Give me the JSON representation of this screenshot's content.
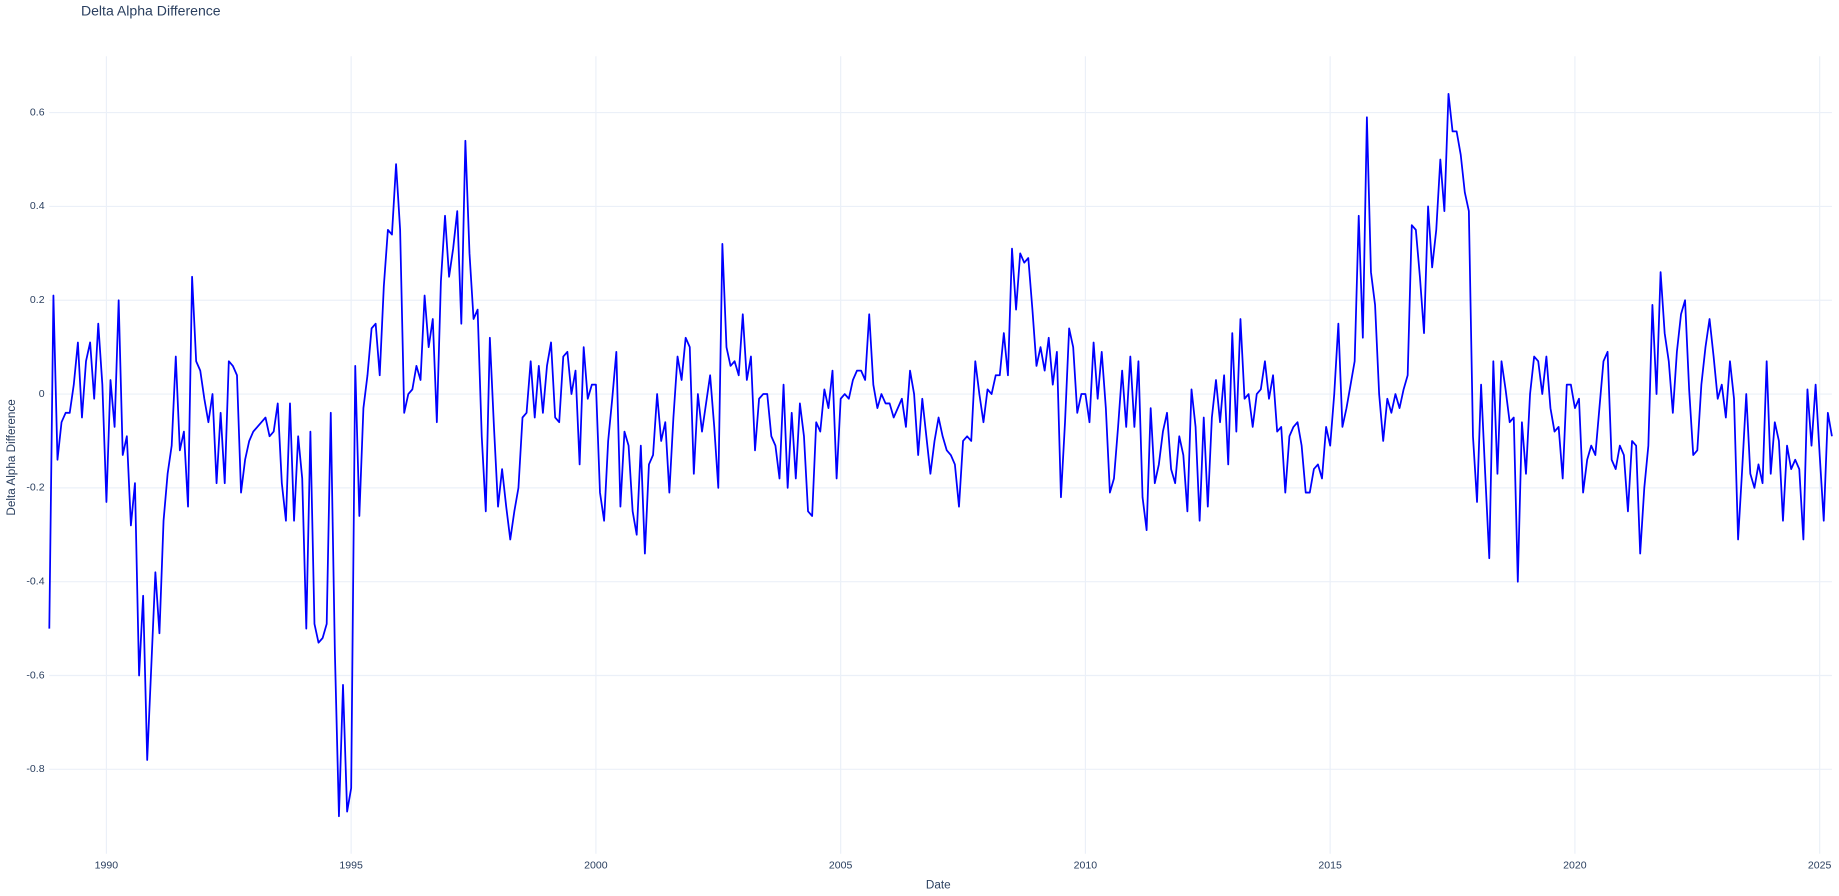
{
  "chart_data": {
    "type": "line",
    "title": "Delta Alpha Difference",
    "x_label": "Date",
    "y_label": "Delta Alpha Difference",
    "color": "#0000ff",
    "grid": true,
    "xlim": [
      1988.833,
      2025.25
    ],
    "xticks": [
      1990,
      1995,
      2000,
      2005,
      2010,
      2015,
      2020,
      2025
    ],
    "ylim": [
      -0.98,
      0.72
    ],
    "yticks": [
      -0.8,
      -0.6,
      -0.4,
      -0.2,
      0,
      0.2,
      0.4,
      0.6
    ],
    "x": [
      1988.833,
      1988.917,
      1989,
      1989.083,
      1989.167,
      1989.25,
      1989.333,
      1989.417,
      1989.5,
      1989.583,
      1989.667,
      1989.75,
      1989.833,
      1989.917,
      1990,
      1990.083,
      1990.167,
      1990.25,
      1990.333,
      1990.417,
      1990.5,
      1990.583,
      1990.667,
      1990.75,
      1990.833,
      1990.917,
      1991,
      1991.083,
      1991.167,
      1991.25,
      1991.333,
      1991.417,
      1991.5,
      1991.583,
      1991.667,
      1991.75,
      1991.833,
      1991.917,
      1992,
      1992.083,
      1992.167,
      1992.25,
      1992.333,
      1992.417,
      1992.5,
      1992.583,
      1992.667,
      1992.75,
      1992.833,
      1992.917,
      1993,
      1993.083,
      1993.167,
      1993.25,
      1993.333,
      1993.417,
      1993.5,
      1993.583,
      1993.667,
      1993.75,
      1993.833,
      1993.917,
      1994,
      1994.083,
      1994.167,
      1994.25,
      1994.333,
      1994.417,
      1994.5,
      1994.583,
      1994.667,
      1994.75,
      1994.833,
      1994.917,
      1995,
      1995.083,
      1995.167,
      1995.25,
      1995.333,
      1995.417,
      1995.5,
      1995.583,
      1995.667,
      1995.75,
      1995.833,
      1995.917,
      1996,
      1996.083,
      1996.167,
      1996.25,
      1996.333,
      1996.417,
      1996.5,
      1996.583,
      1996.667,
      1996.75,
      1996.833,
      1996.917,
      1997,
      1997.083,
      1997.167,
      1997.25,
      1997.333,
      1997.417,
      1997.5,
      1997.583,
      1997.667,
      1997.75,
      1997.833,
      1997.917,
      1998,
      1998.083,
      1998.167,
      1998.25,
      1998.333,
      1998.417,
      1998.5,
      1998.583,
      1998.667,
      1998.75,
      1998.833,
      1998.917,
      1999,
      1999.083,
      1999.167,
      1999.25,
      1999.333,
      1999.417,
      1999.5,
      1999.583,
      1999.667,
      1999.75,
      1999.833,
      1999.917,
      2000,
      2000.083,
      2000.167,
      2000.25,
      2000.333,
      2000.417,
      2000.5,
      2000.583,
      2000.667,
      2000.75,
      2000.833,
      2000.917,
      2001,
      2001.083,
      2001.167,
      2001.25,
      2001.333,
      2001.417,
      2001.5,
      2001.583,
      2001.667,
      2001.75,
      2001.833,
      2001.917,
      2002,
      2002.083,
      2002.167,
      2002.25,
      2002.333,
      2002.417,
      2002.5,
      2002.583,
      2002.667,
      2002.75,
      2002.833,
      2002.917,
      2003,
      2003.083,
      2003.167,
      2003.25,
      2003.333,
      2003.417,
      2003.5,
      2003.583,
      2003.667,
      2003.75,
      2003.833,
      2003.917,
      2004,
      2004.083,
      2004.167,
      2004.25,
      2004.333,
      2004.417,
      2004.5,
      2004.583,
      2004.667,
      2004.75,
      2004.833,
      2004.917,
      2005,
      2005.083,
      2005.167,
      2005.25,
      2005.333,
      2005.417,
      2005.5,
      2005.583,
      2005.667,
      2005.75,
      2005.833,
      2005.917,
      2006,
      2006.083,
      2006.167,
      2006.25,
      2006.333,
      2006.417,
      2006.5,
      2006.583,
      2006.667,
      2006.75,
      2006.833,
      2006.917,
      2007,
      2007.083,
      2007.167,
      2007.25,
      2007.333,
      2007.417,
      2007.5,
      2007.583,
      2007.667,
      2007.75,
      2007.833,
      2007.917,
      2008,
      2008.083,
      2008.167,
      2008.25,
      2008.333,
      2008.417,
      2008.5,
      2008.583,
      2008.667,
      2008.75,
      2008.833,
      2008.917,
      2009,
      2009.083,
      2009.167,
      2009.25,
      2009.333,
      2009.417,
      2009.5,
      2009.583,
      2009.667,
      2009.75,
      2009.833,
      2009.917,
      2010,
      2010.083,
      2010.167,
      2010.25,
      2010.333,
      2010.417,
      2010.5,
      2010.583,
      2010.667,
      2010.75,
      2010.833,
      2010.917,
      2011,
      2011.083,
      2011.167,
      2011.25,
      2011.333,
      2011.417,
      2011.5,
      2011.583,
      2011.667,
      2011.75,
      2011.833,
      2011.917,
      2012,
      2012.083,
      2012.167,
      2012.25,
      2012.333,
      2012.417,
      2012.5,
      2012.583,
      2012.667,
      2012.75,
      2012.833,
      2012.917,
      2013,
      2013.083,
      2013.167,
      2013.25,
      2013.333,
      2013.417,
      2013.5,
      2013.583,
      2013.667,
      2013.75,
      2013.833,
      2013.917,
      2014,
      2014.083,
      2014.167,
      2014.25,
      2014.333,
      2014.417,
      2014.5,
      2014.583,
      2014.667,
      2014.75,
      2014.833,
      2014.917,
      2015,
      2015.083,
      2015.167,
      2015.25,
      2015.333,
      2015.417,
      2015.5,
      2015.583,
      2015.667,
      2015.75,
      2015.833,
      2015.917,
      2016,
      2016.083,
      2016.167,
      2016.25,
      2016.333,
      2016.417,
      2016.5,
      2016.583,
      2016.667,
      2016.75,
      2016.833,
      2016.917,
      2017,
      2017.083,
      2017.167,
      2017.25,
      2017.333,
      2017.417,
      2017.5,
      2017.583,
      2017.667,
      2017.75,
      2017.833,
      2017.917,
      2018,
      2018.083,
      2018.167,
      2018.25,
      2018.333,
      2018.417,
      2018.5,
      2018.583,
      2018.667,
      2018.75,
      2018.833,
      2018.917,
      2019,
      2019.083,
      2019.167,
      2019.25,
      2019.333,
      2019.417,
      2019.5,
      2019.583,
      2019.667,
      2019.75,
      2019.833,
      2019.917,
      2020,
      2020.083,
      2020.167,
      2020.25,
      2020.333,
      2020.417,
      2020.5,
      2020.583,
      2020.667,
      2020.75,
      2020.833,
      2020.917,
      2021,
      2021.083,
      2021.167,
      2021.25,
      2021.333,
      2021.417,
      2021.5,
      2021.583,
      2021.667,
      2021.75,
      2021.833,
      2021.917,
      2022,
      2022.083,
      2022.167,
      2022.25,
      2022.333,
      2022.417,
      2022.5,
      2022.583,
      2022.667,
      2022.75,
      2022.833,
      2022.917,
      2023,
      2023.083,
      2023.167,
      2023.25,
      2023.333,
      2023.417,
      2023.5,
      2023.583,
      2023.667,
      2023.75,
      2023.833,
      2023.917,
      2024,
      2024.083,
      2024.167,
      2024.25,
      2024.333,
      2024.417,
      2024.5,
      2024.583,
      2024.667,
      2024.75,
      2024.833,
      2024.917,
      2025,
      2025.083,
      2025.167,
      2025.25
    ],
    "values": [
      -0.5,
      0.21,
      -0.14,
      -0.06,
      -0.04,
      -0.04,
      0.02,
      0.11,
      -0.05,
      0.07,
      0.11,
      -0.01,
      0.15,
      0.02,
      -0.23,
      0.03,
      -0.07,
      0.2,
      -0.13,
      -0.09,
      -0.28,
      -0.19,
      -0.6,
      -0.43,
      -0.78,
      -0.58,
      -0.38,
      -0.51,
      -0.27,
      -0.17,
      -0.11,
      0.08,
      -0.12,
      -0.08,
      -0.24,
      0.25,
      0.07,
      0.05,
      -0.01,
      -0.06,
      0.0,
      -0.19,
      -0.04,
      -0.19,
      0.07,
      0.06,
      0.04,
      -0.21,
      -0.14,
      -0.1,
      -0.08,
      -0.07,
      -0.06,
      -0.05,
      -0.09,
      -0.08,
      -0.02,
      -0.19,
      -0.27,
      -0.02,
      -0.27,
      -0.09,
      -0.18,
      -0.5,
      -0.08,
      -0.49,
      -0.53,
      -0.52,
      -0.49,
      -0.04,
      -0.55,
      -0.9,
      -0.62,
      -0.89,
      -0.84,
      0.06,
      -0.26,
      -0.03,
      0.04,
      0.14,
      0.15,
      0.04,
      0.23,
      0.35,
      0.34,
      0.49,
      0.35,
      -0.04,
      0.0,
      0.01,
      0.06,
      0.03,
      0.21,
      0.1,
      0.16,
      -0.06,
      0.24,
      0.38,
      0.25,
      0.31,
      0.39,
      0.15,
      0.54,
      0.3,
      0.16,
      0.18,
      -0.09,
      -0.25,
      0.12,
      -0.07,
      -0.24,
      -0.16,
      -0.24,
      -0.31,
      -0.25,
      -0.2,
      -0.05,
      -0.04,
      0.07,
      -0.05,
      0.06,
      -0.04,
      0.06,
      0.11,
      -0.05,
      -0.06,
      0.08,
      0.09,
      0.0,
      0.05,
      -0.15,
      0.1,
      -0.01,
      0.02,
      0.02,
      -0.21,
      -0.27,
      -0.1,
      -0.01,
      0.09,
      -0.24,
      -0.08,
      -0.11,
      -0.25,
      -0.3,
      -0.11,
      -0.34,
      -0.15,
      -0.13,
      0.0,
      -0.1,
      -0.06,
      -0.21,
      -0.05,
      0.08,
      0.03,
      0.12,
      0.1,
      -0.17,
      0.0,
      -0.08,
      -0.02,
      0.04,
      -0.07,
      -0.2,
      0.32,
      0.1,
      0.06,
      0.07,
      0.04,
      0.17,
      0.03,
      0.08,
      -0.12,
      -0.01,
      0.0,
      0.0,
      -0.09,
      -0.11,
      -0.18,
      0.02,
      -0.2,
      -0.04,
      -0.18,
      -0.02,
      -0.09,
      -0.25,
      -0.26,
      -0.06,
      -0.08,
      0.01,
      -0.03,
      0.05,
      -0.18,
      -0.01,
      0.0,
      -0.01,
      0.03,
      0.05,
      0.05,
      0.03,
      0.17,
      0.02,
      -0.03,
      0.0,
      -0.02,
      -0.02,
      -0.05,
      -0.03,
      -0.01,
      -0.07,
      0.05,
      0.0,
      -0.13,
      -0.01,
      -0.09,
      -0.17,
      -0.1,
      -0.05,
      -0.09,
      -0.12,
      -0.13,
      -0.15,
      -0.24,
      -0.1,
      -0.09,
      -0.1,
      0.07,
      0.0,
      -0.06,
      0.01,
      0.0,
      0.04,
      0.04,
      0.13,
      0.04,
      0.31,
      0.18,
      0.3,
      0.28,
      0.29,
      0.18,
      0.06,
      0.1,
      0.05,
      0.12,
      0.02,
      0.09,
      -0.22,
      -0.06,
      0.14,
      0.1,
      -0.04,
      0.0,
      0.0,
      -0.06,
      0.11,
      -0.01,
      0.09,
      -0.03,
      -0.21,
      -0.18,
      -0.07,
      0.05,
      -0.07,
      0.08,
      -0.07,
      0.07,
      -0.22,
      -0.29,
      -0.03,
      -0.19,
      -0.15,
      -0.08,
      -0.04,
      -0.16,
      -0.19,
      -0.09,
      -0.13,
      -0.25,
      0.01,
      -0.07,
      -0.27,
      -0.05,
      -0.24,
      -0.05,
      0.03,
      -0.06,
      0.04,
      -0.15,
      0.13,
      -0.08,
      0.16,
      -0.01,
      0.0,
      -0.07,
      0.0,
      0.01,
      0.07,
      -0.01,
      0.04,
      -0.08,
      -0.07,
      -0.21,
      -0.09,
      -0.07,
      -0.06,
      -0.11,
      -0.21,
      -0.21,
      -0.16,
      -0.15,
      -0.18,
      -0.07,
      -0.11,
      0.0,
      0.15,
      -0.07,
      -0.03,
      0.02,
      0.07,
      0.38,
      0.12,
      0.59,
      0.26,
      0.19,
      0.0,
      -0.1,
      -0.01,
      -0.04,
      0.0,
      -0.03,
      0.01,
      0.04,
      0.36,
      0.35,
      0.25,
      0.13,
      0.4,
      0.27,
      0.35,
      0.5,
      0.39,
      0.64,
      0.56,
      0.56,
      0.51,
      0.43,
      0.39,
      -0.09,
      -0.23,
      0.02,
      -0.17,
      -0.35,
      0.07,
      -0.17,
      0.07,
      0.01,
      -0.06,
      -0.05,
      -0.4,
      -0.06,
      -0.17,
      0.0,
      0.08,
      0.07,
      0.0,
      0.08,
      -0.03,
      -0.08,
      -0.07,
      -0.18,
      0.02,
      0.02,
      -0.03,
      -0.01,
      -0.21,
      -0.14,
      -0.11,
      -0.13,
      -0.03,
      0.07,
      0.09,
      -0.14,
      -0.16,
      -0.11,
      -0.13,
      -0.25,
      -0.1,
      -0.11,
      -0.34,
      -0.2,
      -0.11,
      0.19,
      0.0,
      0.26,
      0.13,
      0.07,
      -0.04,
      0.09,
      0.17,
      0.2,
      0.01,
      -0.13,
      -0.12,
      0.02,
      0.1,
      0.16,
      0.08,
      -0.01,
      0.02,
      -0.05,
      0.07,
      -0.01,
      -0.31,
      -0.16,
      0.0,
      -0.17,
      -0.2,
      -0.15,
      -0.19,
      0.07,
      -0.17,
      -0.06,
      -0.1,
      -0.27,
      -0.11,
      -0.16,
      -0.14,
      -0.16,
      -0.31,
      0.01,
      -0.11,
      0.02,
      -0.13,
      -0.27,
      -0.04,
      -0.09
    ]
  }
}
